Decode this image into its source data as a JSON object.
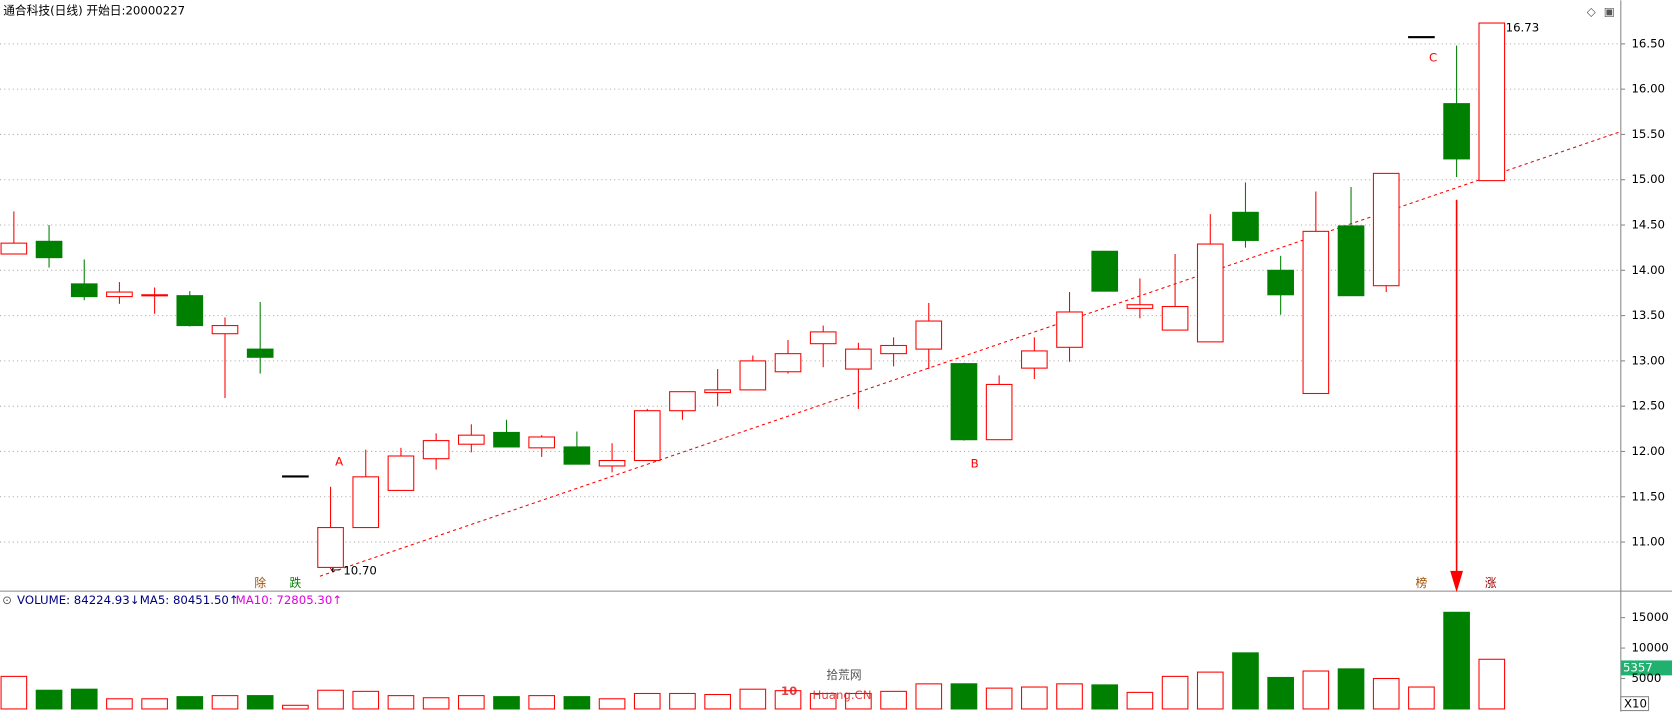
{
  "chart_data": [
    {
      "type": "candlestick",
      "title": "通合科技(日线) 开始日:20000227",
      "open": [
        14.18,
        14.32,
        13.85,
        13.71,
        13.73,
        13.72,
        13.3,
        13.13,
        11.73,
        10.72,
        11.16,
        11.57,
        11.92,
        12.08,
        12.21,
        12.04,
        12.05,
        11.84,
        11.9,
        12.45,
        12.65,
        12.68,
        12.88,
        13.19,
        12.91,
        13.08,
        13.13,
        12.97,
        12.13,
        12.92,
        13.15,
        14.21,
        13.58,
        13.34,
        13.21,
        14.64,
        14.0,
        12.64,
        14.49,
        13.83,
        16.58,
        15.84,
        14.99
      ],
      "high": [
        14.65,
        14.5,
        14.12,
        13.87,
        13.81,
        13.77,
        13.48,
        13.65,
        11.73,
        11.61,
        12.02,
        12.04,
        12.2,
        12.3,
        12.35,
        12.18,
        12.22,
        12.09,
        12.47,
        12.66,
        12.91,
        13.06,
        13.23,
        13.39,
        13.2,
        13.26,
        13.64,
        12.98,
        12.84,
        13.26,
        13.76,
        14.21,
        13.91,
        14.18,
        14.62,
        14.97,
        14.16,
        14.87,
        14.92,
        15.07,
        16.58,
        16.48,
        16.73
      ],
      "low": [
        14.18,
        14.03,
        13.67,
        13.63,
        13.52,
        13.38,
        12.59,
        12.86,
        11.73,
        10.7,
        11.16,
        11.57,
        11.8,
        11.99,
        12.05,
        11.94,
        11.86,
        11.77,
        11.9,
        12.35,
        12.5,
        12.68,
        12.86,
        12.93,
        12.47,
        12.94,
        12.91,
        12.12,
        12.13,
        12.8,
        12.99,
        13.77,
        13.47,
        13.34,
        13.21,
        14.25,
        13.51,
        12.64,
        13.72,
        13.76,
        16.58,
        15.03,
        14.99
      ],
      "close": [
        14.3,
        14.14,
        13.71,
        13.76,
        13.73,
        13.39,
        13.39,
        13.04,
        11.73,
        11.16,
        11.72,
        11.95,
        12.12,
        12.18,
        12.05,
        12.16,
        11.86,
        11.9,
        12.45,
        12.66,
        12.68,
        13.0,
        13.08,
        13.32,
        13.13,
        13.17,
        13.44,
        12.13,
        12.74,
        13.11,
        13.54,
        13.77,
        13.62,
        13.6,
        14.29,
        14.33,
        13.73,
        14.43,
        13.72,
        15.07,
        16.58,
        15.23,
        16.73
      ],
      "ylim": [
        10.47,
        16.98
      ],
      "yticks": [
        {
          "value": 11,
          "label": "11.00"
        },
        {
          "value": 11.5,
          "label": "11.50"
        },
        {
          "value": 12,
          "label": "12.00"
        },
        {
          "value": 12.5,
          "label": "12.50"
        },
        {
          "value": 13,
          "label": "13.00"
        },
        {
          "value": 13.5,
          "label": "13.50"
        },
        {
          "value": 14,
          "label": "14.00"
        },
        {
          "value": 14.5,
          "label": "14.50"
        },
        {
          "value": 15,
          "label": "15.00"
        },
        {
          "value": 15.5,
          "label": "15.50"
        },
        {
          "value": 16,
          "label": "16.00"
        },
        {
          "value": 16.5,
          "label": "16.50"
        }
      ],
      "grid": true,
      "up_color": "#ff0000",
      "down_color": "#008000",
      "annotations": [
        "A",
        "B",
        "C",
        "16.73",
        "10.70",
        "除",
        "跌",
        "榜",
        "涨"
      ]
    },
    {
      "type": "bar",
      "indicator_labels": [
        "VOLUME: 84224.93↓",
        "MA5: 80451.50↑",
        "MA10: 72805.30↑"
      ],
      "values": [
        5350,
        3070,
        3245,
        1670,
        1670,
        2020,
        2190,
        2190,
        600,
        3070,
        2890,
        2190,
        1840,
        2190,
        2020,
        2190,
        2020,
        1670,
        2540,
        2540,
        2370,
        3245,
        3000,
        2540,
        2540,
        2890,
        4120,
        4120,
        3420,
        3600,
        4120,
        3950,
        2720,
        5350,
        6050,
        9210,
        5170,
        6230,
        6580,
        5000,
        3600,
        15870,
        8160
      ],
      "ylim": [
        0,
        19000
      ],
      "yticks": [
        5000,
        10000,
        15000
      ],
      "current_label": "5357",
      "scale_label": "X10",
      "watermark": [
        "拾荒网",
        "Huang.CN"
      ]
    }
  ]
}
